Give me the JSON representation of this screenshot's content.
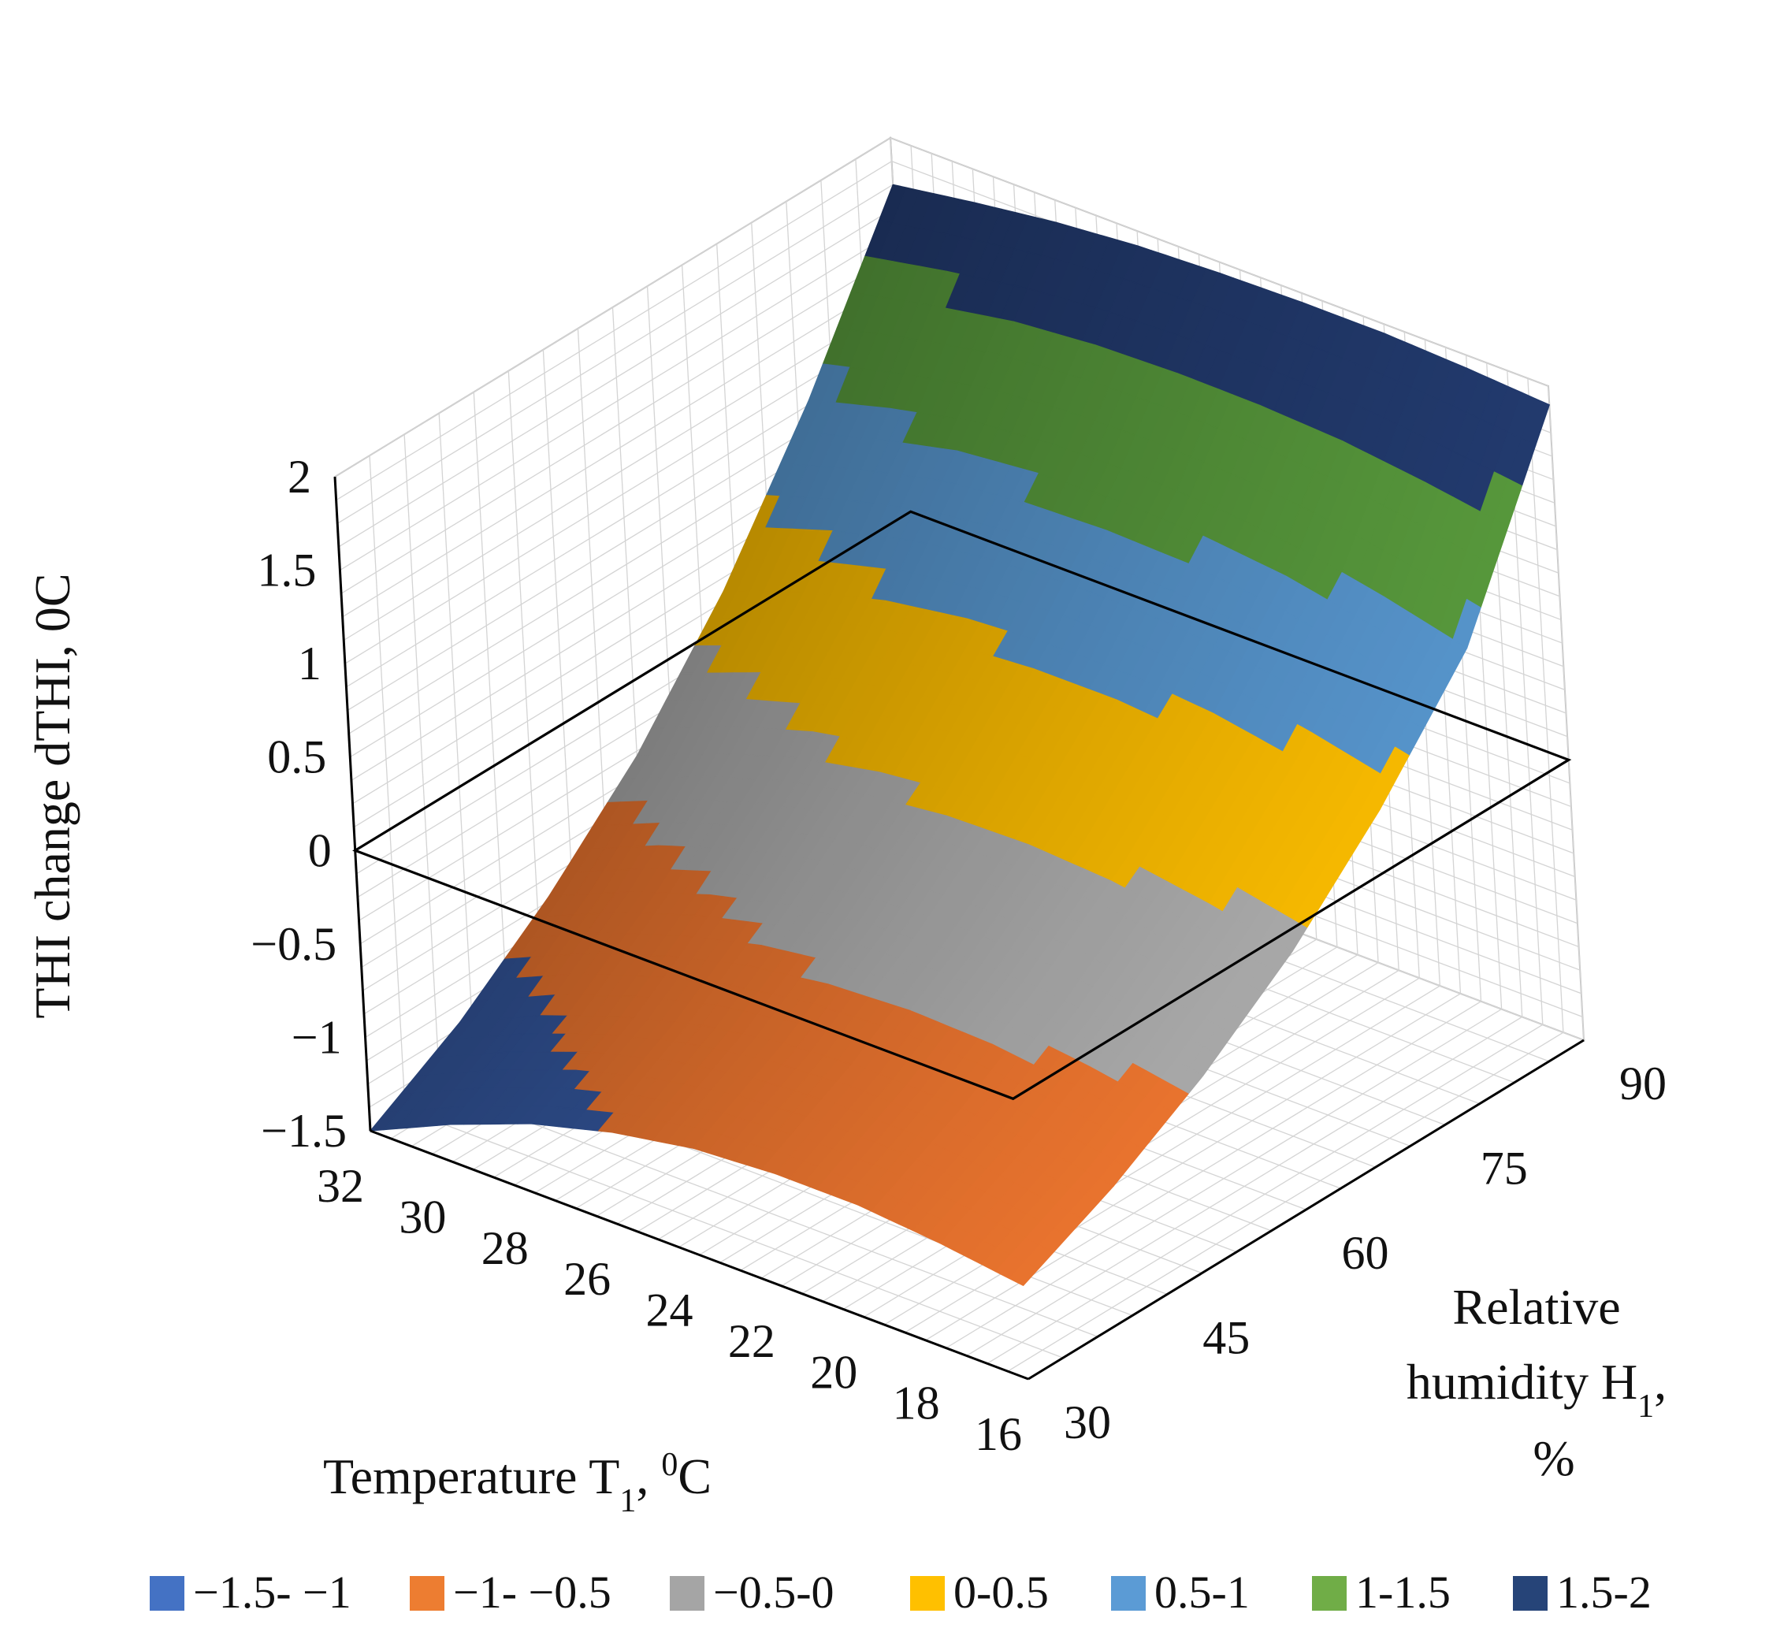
{
  "chart_data": {
    "type": "surface",
    "zlabel": "THI change dTHI, ",
    "zlabel_unit": "0C",
    "xlabel_main": "Temperature T",
    "xlabel_sub": "1",
    "xlabel_rest": ", ",
    "xlabel_sup": "0",
    "xlabel_end": "C",
    "ylabel_line1": "Relative",
    "ylabel_line2_main": "humidity H",
    "ylabel_line2_sub": "1",
    "ylabel_line2_end": ",",
    "ylabel_line3": "%",
    "temperature_ticks": [
      "32",
      "30",
      "28",
      "26",
      "24",
      "22",
      "20",
      "18",
      "16"
    ],
    "temperature_values": [
      32,
      30,
      28,
      26,
      24,
      22,
      20,
      18,
      16
    ],
    "humidity_ticks": [
      "30",
      "45",
      "60",
      "75",
      "90"
    ],
    "humidity_values": [
      30,
      45,
      60,
      75,
      90
    ],
    "z_ticks": [
      "2",
      "1.5",
      "1",
      "0.5",
      "0",
      "−0.5",
      "−1",
      "−1.5"
    ],
    "z_values": [
      2,
      1.5,
      1,
      0.5,
      0,
      -0.5,
      -1,
      -1.5
    ],
    "zlim": [
      -1.5,
      2
    ],
    "surface_z": [
      [
        -1.5,
        -1.22,
        -0.85,
        -0.4,
        0.18,
        0.9,
        1.75
      ],
      [
        -1.3,
        -1.02,
        -0.66,
        -0.22,
        0.34,
        1.02,
        1.82
      ],
      [
        -1.13,
        -0.86,
        -0.51,
        -0.08,
        0.46,
        1.12,
        1.88
      ],
      [
        -1.01,
        -0.74,
        -0.4,
        0.01,
        0.53,
        1.16,
        1.92
      ],
      [
        -0.93,
        -0.67,
        -0.34,
        0.06,
        0.56,
        1.17,
        1.94
      ],
      [
        -0.9,
        -0.64,
        -0.32,
        0.07,
        0.56,
        1.15,
        1.95
      ],
      [
        -0.9,
        -0.65,
        -0.34,
        0.04,
        0.52,
        1.1,
        1.95
      ],
      [
        -0.94,
        -0.7,
        -0.4,
        -0.03,
        0.44,
        1.01,
        1.93
      ],
      [
        -1.0,
        -0.77,
        -0.48,
        -0.12,
        0.34,
        0.9,
        1.9
      ]
    ],
    "legend": [
      {
        "label": "−1.5- −1",
        "color": "#4472C4"
      },
      {
        "label": "−1- −0.5",
        "color": "#ED7D31"
      },
      {
        "label": "−0.5-0",
        "color": "#A5A5A5"
      },
      {
        "label": "0-0.5",
        "color": "#FFC000"
      },
      {
        "label": "0.5-1",
        "color": "#5B9BD5"
      },
      {
        "label": "1-1.5",
        "color": "#70AD47"
      },
      {
        "label": "1.5-2",
        "color": "#264478"
      }
    ],
    "surface_colors": [
      "#2E4D8C",
      "#D4692A",
      "#999999",
      "#E0A800",
      "#4E86B8",
      "#4F8A36",
      "#1F3564"
    ]
  }
}
